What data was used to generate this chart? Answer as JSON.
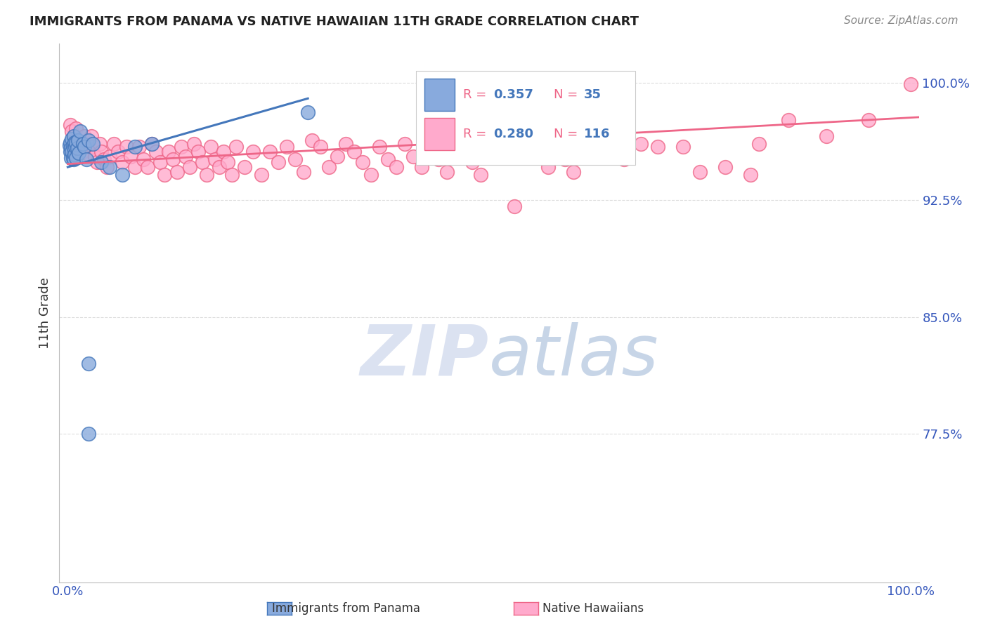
{
  "title": "IMMIGRANTS FROM PANAMA VS NATIVE HAWAIIAN 11TH GRADE CORRELATION CHART",
  "source": "Source: ZipAtlas.com",
  "ylabel": "11th Grade",
  "y_range": [
    0.68,
    1.025
  ],
  "x_range": [
    -0.01,
    1.01
  ],
  "blue_color": "#88AADD",
  "pink_color": "#FFAACC",
  "blue_edge_color": "#4477BB",
  "pink_edge_color": "#EE6688",
  "blue_line_color": "#4477BB",
  "pink_line_color": "#EE6688",
  "axis_label_color": "#3355BB",
  "grid_color": "#DDDDDD",
  "background_color": "#FFFFFF",
  "title_color": "#222222",
  "source_color": "#888888",
  "blue_scatter": [
    [
      0.002,
      0.96
    ],
    [
      0.003,
      0.962
    ],
    [
      0.003,
      0.956
    ],
    [
      0.004,
      0.958
    ],
    [
      0.004,
      0.952
    ],
    [
      0.005,
      0.964
    ],
    [
      0.005,
      0.956
    ],
    [
      0.006,
      0.96
    ],
    [
      0.006,
      0.952
    ],
    [
      0.007,
      0.966
    ],
    [
      0.007,
      0.958
    ],
    [
      0.007,
      0.951
    ],
    [
      0.008,
      0.962
    ],
    [
      0.008,
      0.954
    ],
    [
      0.009,
      0.959
    ],
    [
      0.01,
      0.962
    ],
    [
      0.01,
      0.952
    ],
    [
      0.011,
      0.958
    ],
    [
      0.012,
      0.963
    ],
    [
      0.013,
      0.955
    ],
    [
      0.015,
      0.969
    ],
    [
      0.018,
      0.961
    ],
    [
      0.02,
      0.959
    ],
    [
      0.022,
      0.951
    ],
    [
      0.025,
      0.963
    ],
    [
      0.03,
      0.961
    ],
    [
      0.04,
      0.949
    ],
    [
      0.05,
      0.946
    ],
    [
      0.065,
      0.941
    ],
    [
      0.08,
      0.959
    ],
    [
      0.1,
      0.961
    ],
    [
      0.285,
      0.981
    ],
    [
      0.025,
      0.82
    ],
    [
      0.025,
      0.775
    ]
  ],
  "pink_scatter": [
    [
      0.003,
      0.973
    ],
    [
      0.005,
      0.969
    ],
    [
      0.007,
      0.966
    ],
    [
      0.01,
      0.971
    ],
    [
      0.012,
      0.963
    ],
    [
      0.015,
      0.959
    ],
    [
      0.018,
      0.956
    ],
    [
      0.02,
      0.966
    ],
    [
      0.022,
      0.959
    ],
    [
      0.025,
      0.954
    ],
    [
      0.028,
      0.966
    ],
    [
      0.03,
      0.959
    ],
    [
      0.032,
      0.953
    ],
    [
      0.035,
      0.949
    ],
    [
      0.038,
      0.961
    ],
    [
      0.04,
      0.956
    ],
    [
      0.043,
      0.951
    ],
    [
      0.046,
      0.946
    ],
    [
      0.05,
      0.953
    ],
    [
      0.055,
      0.961
    ],
    [
      0.06,
      0.956
    ],
    [
      0.065,
      0.949
    ],
    [
      0.07,
      0.959
    ],
    [
      0.075,
      0.953
    ],
    [
      0.08,
      0.946
    ],
    [
      0.085,
      0.959
    ],
    [
      0.09,
      0.951
    ],
    [
      0.095,
      0.946
    ],
    [
      0.1,
      0.961
    ],
    [
      0.105,
      0.956
    ],
    [
      0.11,
      0.949
    ],
    [
      0.115,
      0.941
    ],
    [
      0.12,
      0.956
    ],
    [
      0.125,
      0.951
    ],
    [
      0.13,
      0.943
    ],
    [
      0.135,
      0.959
    ],
    [
      0.14,
      0.953
    ],
    [
      0.145,
      0.946
    ],
    [
      0.15,
      0.961
    ],
    [
      0.155,
      0.956
    ],
    [
      0.16,
      0.949
    ],
    [
      0.165,
      0.941
    ],
    [
      0.17,
      0.959
    ],
    [
      0.175,
      0.951
    ],
    [
      0.18,
      0.946
    ],
    [
      0.185,
      0.956
    ],
    [
      0.19,
      0.949
    ],
    [
      0.195,
      0.941
    ],
    [
      0.2,
      0.959
    ],
    [
      0.21,
      0.946
    ],
    [
      0.22,
      0.956
    ],
    [
      0.23,
      0.941
    ],
    [
      0.24,
      0.956
    ],
    [
      0.25,
      0.949
    ],
    [
      0.26,
      0.959
    ],
    [
      0.27,
      0.951
    ],
    [
      0.28,
      0.943
    ],
    [
      0.29,
      0.963
    ],
    [
      0.3,
      0.959
    ],
    [
      0.31,
      0.946
    ],
    [
      0.32,
      0.953
    ],
    [
      0.33,
      0.961
    ],
    [
      0.34,
      0.956
    ],
    [
      0.35,
      0.949
    ],
    [
      0.36,
      0.941
    ],
    [
      0.37,
      0.959
    ],
    [
      0.38,
      0.951
    ],
    [
      0.39,
      0.946
    ],
    [
      0.4,
      0.961
    ],
    [
      0.41,
      0.953
    ],
    [
      0.42,
      0.946
    ],
    [
      0.43,
      0.959
    ],
    [
      0.44,
      0.951
    ],
    [
      0.45,
      0.943
    ],
    [
      0.46,
      0.961
    ],
    [
      0.47,
      0.956
    ],
    [
      0.48,
      0.949
    ],
    [
      0.49,
      0.941
    ],
    [
      0.5,
      0.961
    ],
    [
      0.51,
      0.953
    ],
    [
      0.53,
      0.921
    ],
    [
      0.54,
      0.956
    ],
    [
      0.55,
      0.961
    ],
    [
      0.56,
      0.953
    ],
    [
      0.57,
      0.946
    ],
    [
      0.58,
      0.959
    ],
    [
      0.59,
      0.951
    ],
    [
      0.6,
      0.943
    ],
    [
      0.61,
      0.961
    ],
    [
      0.62,
      0.953
    ],
    [
      0.64,
      0.966
    ],
    [
      0.65,
      0.959
    ],
    [
      0.66,
      0.951
    ],
    [
      0.68,
      0.961
    ],
    [
      0.7,
      0.959
    ],
    [
      0.73,
      0.959
    ],
    [
      0.75,
      0.943
    ],
    [
      0.78,
      0.946
    ],
    [
      0.81,
      0.941
    ],
    [
      0.82,
      0.961
    ],
    [
      0.855,
      0.976
    ],
    [
      0.9,
      0.966
    ],
    [
      0.95,
      0.976
    ],
    [
      1.0,
      0.999
    ]
  ],
  "blue_line_x": [
    0.0,
    0.285
  ],
  "blue_line_y": [
    0.946,
    0.99
  ],
  "pink_line_x": [
    0.0,
    1.01
  ],
  "pink_line_y": [
    0.948,
    0.978
  ],
  "watermark_zip_color": "#D8DFF0",
  "watermark_atlas_color": "#B0C4DE"
}
